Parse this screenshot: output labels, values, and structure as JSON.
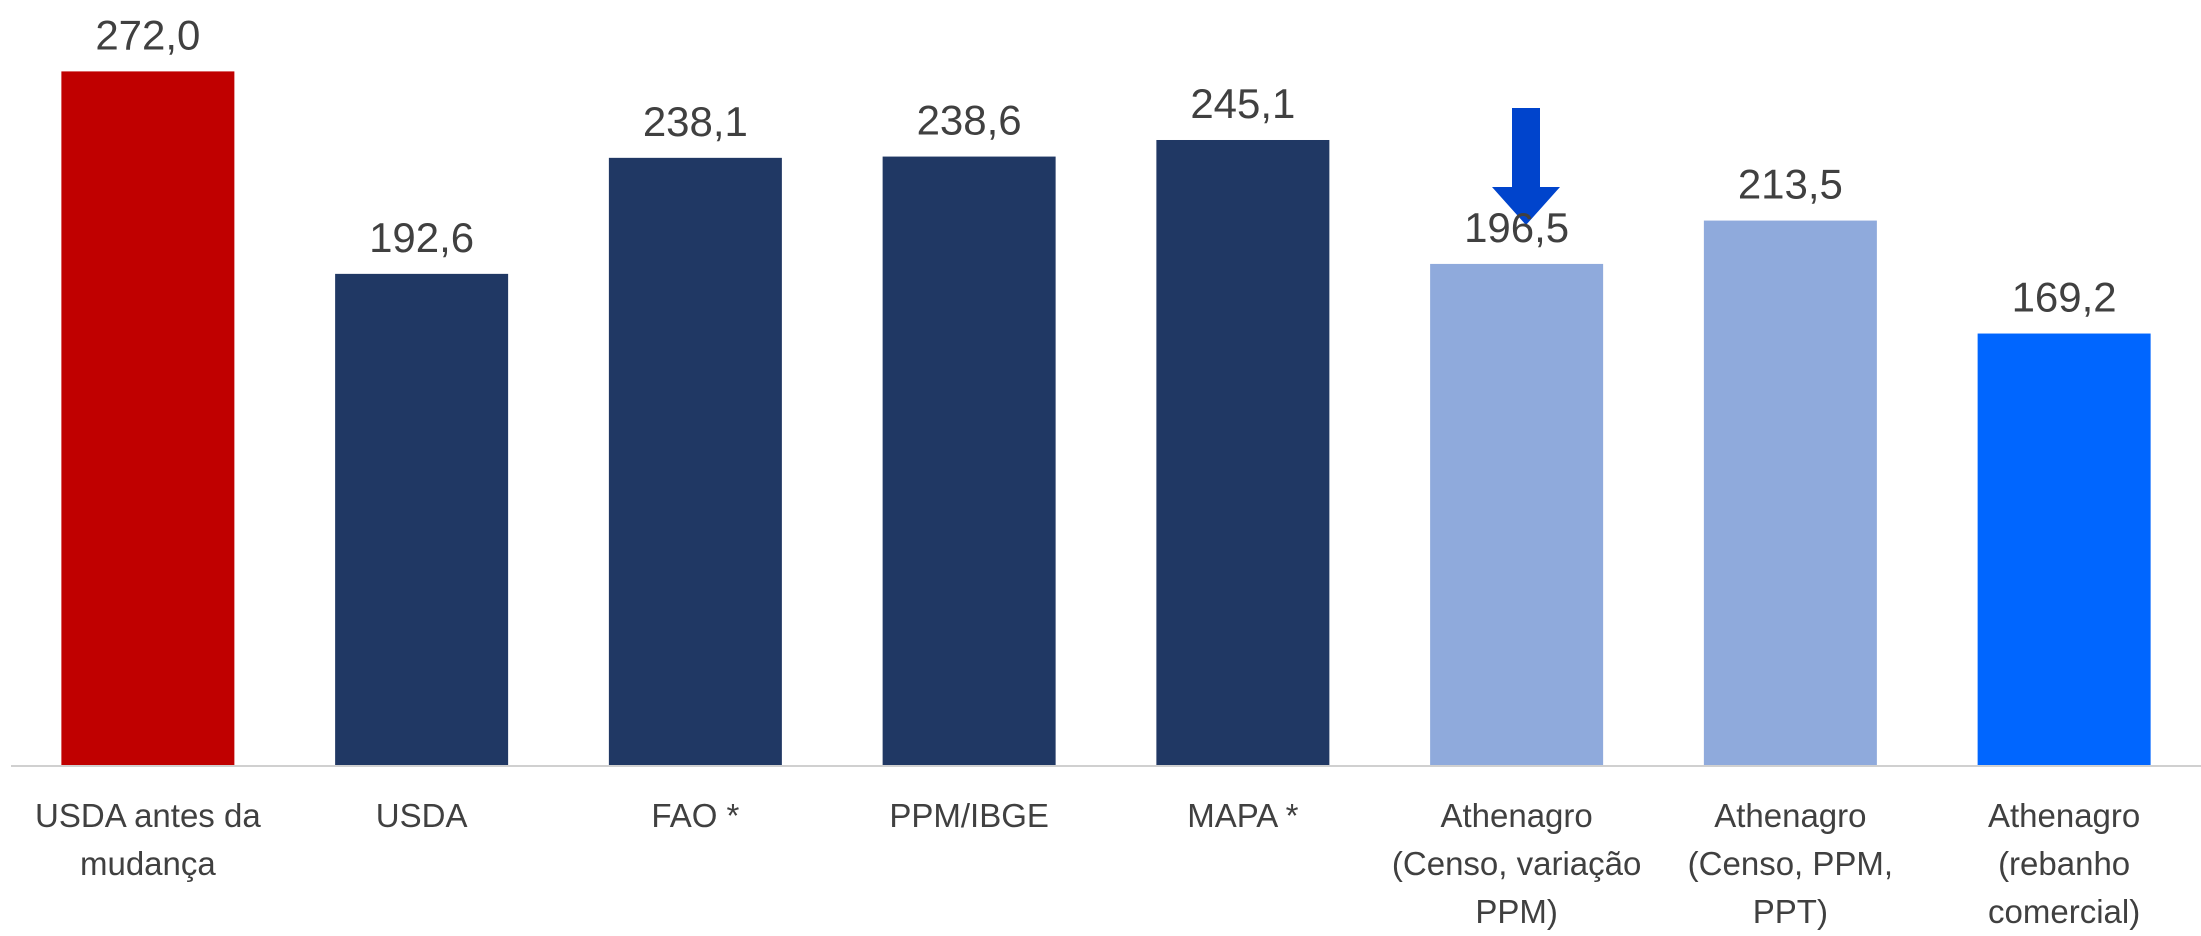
{
  "chart_data": {
    "type": "bar",
    "categories": [
      "USDA antes da mudança",
      "USDA",
      "FAO *",
      "PPM/IBGE",
      "MAPA *",
      "Athenagro (Censo, variação PPM)",
      "Athenagro (Censo, PPM, PPT)",
      "Athenagro (rebanho comercial)"
    ],
    "values": [
      272.0,
      192.6,
      238.1,
      238.6,
      245.1,
      196.5,
      213.5,
      169.2
    ],
    "value_labels": [
      "272,0",
      "192,6",
      "238,1",
      "238,6",
      "245,1",
      "196,5",
      "213,5",
      "169,2"
    ],
    "colors": [
      "#c00000",
      "#203864",
      "#203864",
      "#203864",
      "#203864",
      "#8faadc",
      "#8faadc",
      "#0066ff"
    ],
    "ylim": [
      0,
      300
    ]
  }
}
